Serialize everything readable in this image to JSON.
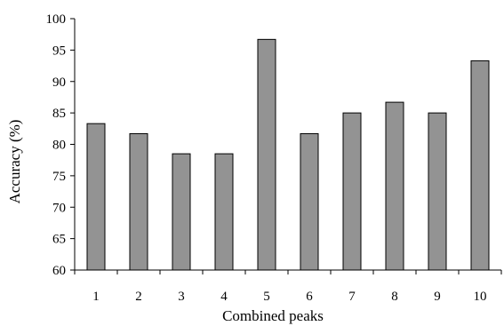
{
  "chart_data": {
    "type": "bar",
    "categories": [
      "1",
      "2",
      "3",
      "4",
      "5",
      "6",
      "7",
      "8",
      "9",
      "10"
    ],
    "values": [
      83.3,
      81.7,
      78.5,
      78.5,
      96.7,
      81.7,
      85.0,
      86.7,
      85.0,
      93.3
    ],
    "xlabel": "Combined peaks",
    "ylabel": "Accuracy (%)",
    "ylim": [
      60,
      100
    ],
    "yticks": [
      60,
      65,
      70,
      75,
      80,
      85,
      90,
      95,
      100
    ],
    "grid": false,
    "legend": "none",
    "bar_color": "#939393",
    "bar_edge_color": "#000000"
  }
}
